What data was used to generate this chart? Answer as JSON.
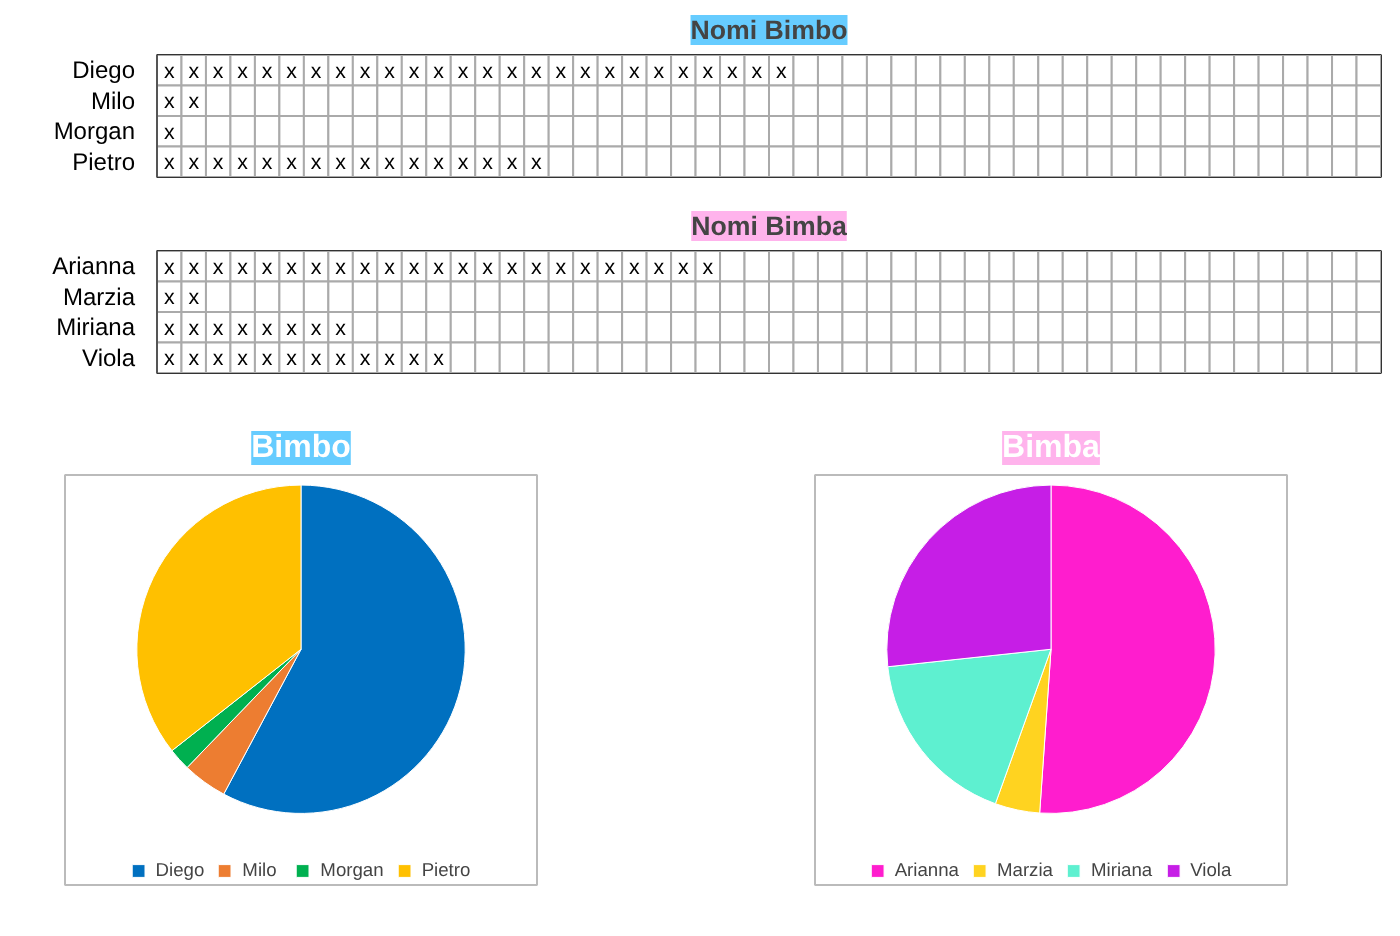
{
  "chart_data": [
    {
      "type": "heatmap",
      "title": "Nomi Bimbo",
      "color": "#66ccff",
      "categories": [
        null,
        null,
        null,
        null,
        null,
        null,
        null,
        null,
        null,
        null,
        null,
        null,
        null,
        null,
        null,
        null,
        null,
        null,
        null,
        null,
        null,
        null,
        null,
        null,
        null,
        null,
        null,
        null,
        null,
        null,
        null,
        null,
        null,
        null,
        null,
        null,
        null,
        null,
        null,
        null,
        null,
        null,
        null,
        null,
        null,
        null,
        null,
        null,
        null,
        null
      ],
      "y_categories": [
        "Diego",
        "Milo",
        "Morgan",
        "Pietro"
      ],
      "cells": [
        [
          "x",
          "x",
          "x",
          "x",
          "x",
          "x",
          "x",
          "x",
          "x",
          "x",
          "x",
          "x",
          "x",
          "x",
          "x",
          "x",
          "x",
          "x",
          "x",
          "x",
          "x",
          "x",
          "x",
          "x",
          "x",
          "x",
          null,
          null,
          null,
          null,
          null,
          null,
          null,
          null,
          null,
          null,
          null,
          null,
          null,
          null,
          null,
          null,
          null,
          null,
          null,
          null,
          null,
          null,
          null,
          null
        ],
        [
          "x",
          "x",
          null,
          null,
          null,
          null,
          null,
          null,
          null,
          null,
          null,
          null,
          null,
          null,
          null,
          null,
          null,
          null,
          null,
          null,
          null,
          null,
          null,
          null,
          null,
          null,
          null,
          null,
          null,
          null,
          null,
          null,
          null,
          null,
          null,
          null,
          null,
          null,
          null,
          null,
          null,
          null,
          null,
          null,
          null,
          null,
          null,
          null,
          null,
          null
        ],
        [
          "x",
          null,
          null,
          null,
          null,
          null,
          null,
          null,
          null,
          null,
          null,
          null,
          null,
          null,
          null,
          null,
          null,
          null,
          null,
          null,
          null,
          null,
          null,
          null,
          null,
          null,
          null,
          null,
          null,
          null,
          null,
          null,
          null,
          null,
          null,
          null,
          null,
          null,
          null,
          null,
          null,
          null,
          null,
          null,
          null,
          null,
          null,
          null,
          null,
          null
        ],
        [
          "x",
          "x",
          "x",
          "x",
          "x",
          "x",
          "x",
          "x",
          "x",
          "x",
          "x",
          "x",
          "x",
          "x",
          "x",
          "x",
          null,
          null,
          null,
          null,
          null,
          null,
          null,
          null,
          null,
          null,
          null,
          null,
          null,
          null,
          null,
          null,
          null,
          null,
          null,
          null,
          null,
          null,
          null,
          null,
          null,
          null,
          null,
          null,
          null,
          null,
          null,
          null,
          null,
          null
        ]
      ]
    },
    {
      "type": "heatmap",
      "title": "Nomi Bimba",
      "color": "#ffb3ec",
      "categories": [
        null,
        null,
        null,
        null,
        null,
        null,
        null,
        null,
        null,
        null,
        null,
        null,
        null,
        null,
        null,
        null,
        null,
        null,
        null,
        null,
        null,
        null,
        null,
        null,
        null,
        null,
        null,
        null,
        null,
        null,
        null,
        null,
        null,
        null,
        null,
        null,
        null,
        null,
        null,
        null,
        null,
        null,
        null,
        null,
        null,
        null,
        null,
        null,
        null,
        null
      ],
      "y_categories": [
        "Arianna",
        "Marzia",
        "Miriana",
        "Viola"
      ],
      "cells": [
        [
          "x",
          "x",
          "x",
          "x",
          "x",
          "x",
          "x",
          "x",
          "x",
          "x",
          "x",
          "x",
          "x",
          "x",
          "x",
          "x",
          "x",
          "x",
          "x",
          "x",
          "x",
          "x",
          "x",
          null,
          null,
          null,
          null,
          null,
          null,
          null,
          null,
          null,
          null,
          null,
          null,
          null,
          null,
          null,
          null,
          null,
          null,
          null,
          null,
          null,
          null,
          null,
          null,
          null,
          null,
          null
        ],
        [
          "x",
          "x",
          null,
          null,
          null,
          null,
          null,
          null,
          null,
          null,
          null,
          null,
          null,
          null,
          null,
          null,
          null,
          null,
          null,
          null,
          null,
          null,
          null,
          null,
          null,
          null,
          null,
          null,
          null,
          null,
          null,
          null,
          null,
          null,
          null,
          null,
          null,
          null,
          null,
          null,
          null,
          null,
          null,
          null,
          null,
          null,
          null,
          null,
          null,
          null
        ],
        [
          "x",
          "x",
          "x",
          "x",
          "x",
          "x",
          "x",
          "x",
          null,
          null,
          null,
          null,
          null,
          null,
          null,
          null,
          null,
          null,
          null,
          null,
          null,
          null,
          null,
          null,
          null,
          null,
          null,
          null,
          null,
          null,
          null,
          null,
          null,
          null,
          null,
          null,
          null,
          null,
          null,
          null,
          null,
          null,
          null,
          null,
          null,
          null,
          null,
          null,
          null,
          null
        ],
        [
          "x",
          "x",
          "x",
          "x",
          "x",
          "x",
          "x",
          "x",
          "x",
          "x",
          "x",
          "x",
          null,
          null,
          null,
          null,
          null,
          null,
          null,
          null,
          null,
          null,
          null,
          null,
          null,
          null,
          null,
          null,
          null,
          null,
          null,
          null,
          null,
          null,
          null,
          null,
          null,
          null,
          null,
          null,
          null,
          null,
          null,
          null,
          null,
          null,
          null,
          null,
          null,
          null
        ]
      ]
    },
    {
      "type": "pie",
      "title": "Bimbo",
      "color": "#66ccff",
      "legend": "bottom",
      "categories": [
        "Diego",
        "Milo",
        "Morgan",
        "Pietro"
      ],
      "values": [
        57.8,
        4.4,
        2.2,
        35.6
      ],
      "colors": [
        "#0070c0",
        "#ed7d31",
        "#00b050",
        "#ffc000"
      ]
    },
    {
      "type": "pie",
      "title": "Bimba",
      "color": "#ffb3ec",
      "legend": "bottom",
      "categories": [
        "Arianna",
        "Marzia",
        "Miriana",
        "Viola"
      ],
      "values": [
        51.1,
        4.4,
        17.8,
        26.7
      ],
      "colors": [
        "#ff1dce",
        "#ffd320",
        "#5ef0d0",
        "#c61ee6"
      ]
    }
  ]
}
